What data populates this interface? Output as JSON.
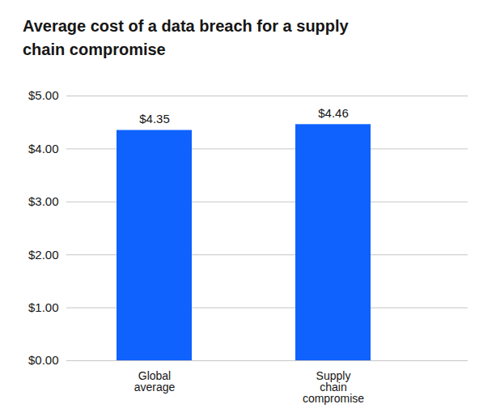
{
  "chart_data": {
    "type": "bar",
    "title": "Average cost of a data breach for a supply chain compromise",
    "categories": [
      "Global average",
      "Supply chain compromise"
    ],
    "values": [
      4.35,
      4.46
    ],
    "value_labels": [
      "$4.35",
      "$4.46"
    ],
    "color": "#0f62fe",
    "ylim": [
      0,
      5
    ],
    "yticks": [
      {
        "value": 0,
        "label": "$0.00"
      },
      {
        "value": 1,
        "label": "$1.00"
      },
      {
        "value": 2,
        "label": "$2.00"
      },
      {
        "value": 3,
        "label": "$3.00"
      },
      {
        "value": 4,
        "label": "$4.00"
      },
      {
        "value": 5,
        "label": "$5.00"
      }
    ],
    "grid": true,
    "data_labels": true
  }
}
